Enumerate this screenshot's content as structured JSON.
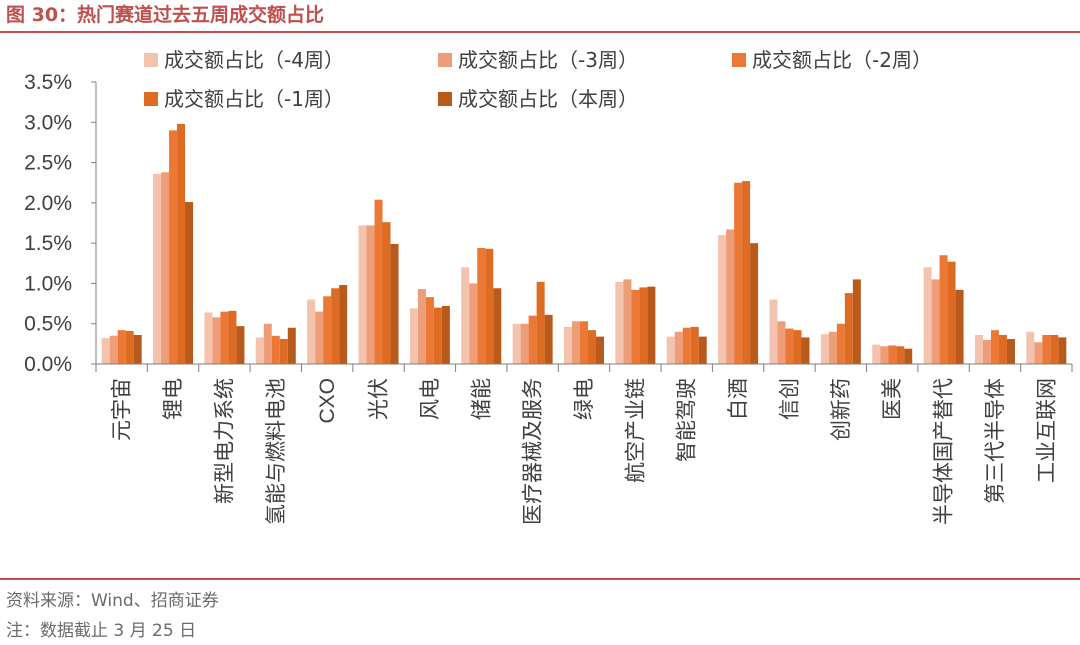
{
  "title": "图 30：热门赛道过去五周成交额占比",
  "source": "资料来源：Wind、招商证券",
  "note": "注：数据截止 3 月 25 日",
  "colors": {
    "title": "#c0504d",
    "rule": "#c0504d",
    "series": [
      "#f4c3ad",
      "#ee9d79",
      "#eb7935",
      "#dd6b22",
      "#b85a1c"
    ]
  },
  "chart_data": {
    "type": "bar",
    "title": "",
    "xlabel": "",
    "ylabel": "",
    "ylim": [
      0,
      0.035
    ],
    "yticks": [
      "0.0%",
      "0.5%",
      "1.0%",
      "1.5%",
      "2.0%",
      "2.5%",
      "3.0%",
      "3.5%"
    ],
    "grid": false,
    "legend_position": "top",
    "categories": [
      "元宇宙",
      "锂电",
      "新型电力系统",
      "氢能与燃料电池",
      "CXO",
      "光伏",
      "风电",
      "储能",
      "医疗器械及服务",
      "绿电",
      "航空产业链",
      "智能驾驶",
      "白酒",
      "信创",
      "创新药",
      "医美",
      "半导体国产替代",
      "第三代半导体",
      "工业互联网"
    ],
    "series": [
      {
        "name": "成交额占比（-4周）",
        "values": [
          0.0032,
          0.0236,
          0.0064,
          0.0033,
          0.008,
          0.0172,
          0.0069,
          0.012,
          0.005,
          0.0046,
          0.0102,
          0.0034,
          0.016,
          0.008,
          0.0037,
          0.0024,
          0.012,
          0.0036,
          0.004
        ]
      },
      {
        "name": "成交额占比（-3周）",
        "values": [
          0.0035,
          0.0238,
          0.0058,
          0.005,
          0.0065,
          0.0172,
          0.0093,
          0.01,
          0.005,
          0.0053,
          0.0105,
          0.004,
          0.0167,
          0.0053,
          0.004,
          0.0022,
          0.0105,
          0.003,
          0.0027
        ]
      },
      {
        "name": "成交额占比（-2周）",
        "values": [
          0.0042,
          0.029,
          0.0065,
          0.0035,
          0.0084,
          0.0204,
          0.0083,
          0.0144,
          0.006,
          0.0053,
          0.0092,
          0.0045,
          0.0225,
          0.0044,
          0.005,
          0.0023,
          0.0135,
          0.0042,
          0.0036
        ]
      },
      {
        "name": "成交额占比（-1周）",
        "values": [
          0.0041,
          0.0298,
          0.0066,
          0.0031,
          0.0094,
          0.0176,
          0.007,
          0.0143,
          0.0102,
          0.0042,
          0.0095,
          0.0046,
          0.0227,
          0.0042,
          0.0088,
          0.0022,
          0.0127,
          0.0036,
          0.0036
        ]
      },
      {
        "name": "成交额占比（本周）",
        "values": [
          0.0036,
          0.0201,
          0.0047,
          0.0045,
          0.0098,
          0.0149,
          0.0072,
          0.0094,
          0.0061,
          0.0034,
          0.0096,
          0.0034,
          0.015,
          0.0033,
          0.0105,
          0.0019,
          0.0092,
          0.0031,
          0.0033
        ]
      }
    ]
  }
}
